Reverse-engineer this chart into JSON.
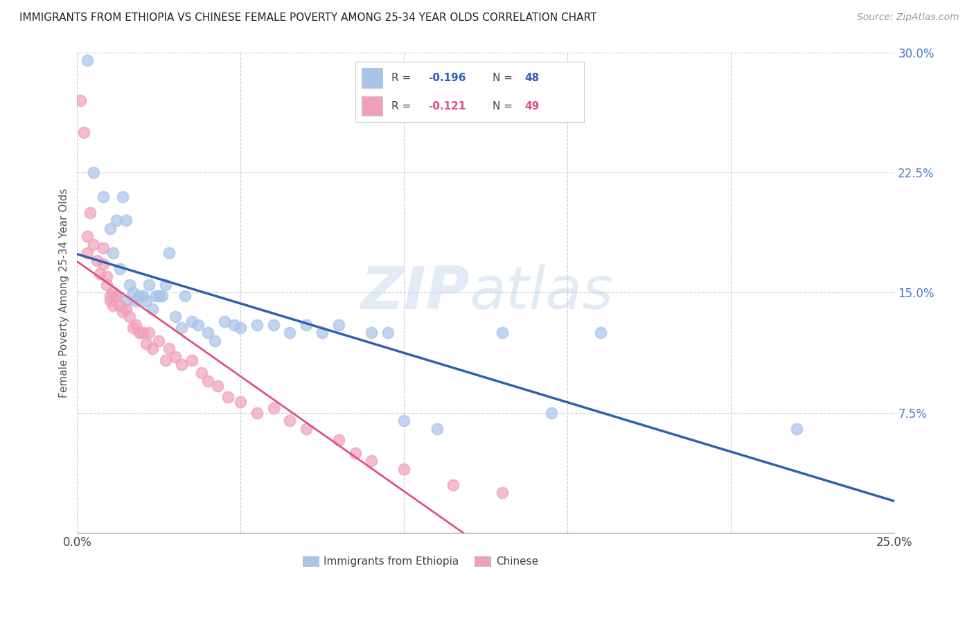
{
  "title": "IMMIGRANTS FROM ETHIOPIA VS CHINESE FEMALE POVERTY AMONG 25-34 YEAR OLDS CORRELATION CHART",
  "source": "Source: ZipAtlas.com",
  "ylabel": "Female Poverty Among 25-34 Year Olds",
  "xlim": [
    0.0,
    0.25
  ],
  "ylim": [
    0.0,
    0.3
  ],
  "x_ticks": [
    0.0,
    0.05,
    0.1,
    0.15,
    0.2,
    0.25
  ],
  "x_tick_labels": [
    "0.0%",
    "",
    "",
    "",
    "",
    "25.0%"
  ],
  "y_ticks_right": [
    0.075,
    0.15,
    0.225,
    0.3
  ],
  "y_tick_labels_right": [
    "7.5%",
    "15.0%",
    "22.5%",
    "30.0%"
  ],
  "color_blue": "#a8c4e8",
  "color_pink": "#f0a0b8",
  "color_blue_line": "#3060b0",
  "color_pink_line": "#e05080",
  "watermark_zip": "ZIP",
  "watermark_atlas": "atlas",
  "ethiopia_x": [
    0.003,
    0.005,
    0.008,
    0.01,
    0.011,
    0.012,
    0.012,
    0.013,
    0.014,
    0.015,
    0.015,
    0.016,
    0.017,
    0.018,
    0.019,
    0.02,
    0.021,
    0.022,
    0.023,
    0.024,
    0.025,
    0.026,
    0.027,
    0.028,
    0.03,
    0.032,
    0.033,
    0.035,
    0.037,
    0.04,
    0.042,
    0.045,
    0.048,
    0.05,
    0.055,
    0.06,
    0.065,
    0.07,
    0.075,
    0.08,
    0.09,
    0.095,
    0.1,
    0.11,
    0.13,
    0.145,
    0.16,
    0.22
  ],
  "ethiopia_y": [
    0.295,
    0.225,
    0.21,
    0.19,
    0.175,
    0.195,
    0.148,
    0.165,
    0.21,
    0.195,
    0.145,
    0.155,
    0.15,
    0.145,
    0.148,
    0.148,
    0.145,
    0.155,
    0.14,
    0.148,
    0.148,
    0.148,
    0.155,
    0.175,
    0.135,
    0.128,
    0.148,
    0.132,
    0.13,
    0.125,
    0.12,
    0.132,
    0.13,
    0.128,
    0.13,
    0.13,
    0.125,
    0.13,
    0.125,
    0.13,
    0.125,
    0.125,
    0.07,
    0.065,
    0.125,
    0.075,
    0.125,
    0.065
  ],
  "chinese_x": [
    0.001,
    0.002,
    0.003,
    0.003,
    0.004,
    0.005,
    0.006,
    0.007,
    0.008,
    0.008,
    0.009,
    0.009,
    0.01,
    0.01,
    0.011,
    0.011,
    0.012,
    0.013,
    0.014,
    0.015,
    0.016,
    0.017,
    0.018,
    0.019,
    0.02,
    0.021,
    0.022,
    0.023,
    0.025,
    0.027,
    0.028,
    0.03,
    0.032,
    0.035,
    0.038,
    0.04,
    0.043,
    0.046,
    0.05,
    0.055,
    0.06,
    0.065,
    0.07,
    0.08,
    0.085,
    0.09,
    0.1,
    0.115,
    0.13
  ],
  "chinese_y": [
    0.27,
    0.25,
    0.185,
    0.175,
    0.2,
    0.18,
    0.17,
    0.162,
    0.178,
    0.168,
    0.16,
    0.155,
    0.145,
    0.148,
    0.15,
    0.142,
    0.148,
    0.142,
    0.138,
    0.14,
    0.135,
    0.128,
    0.13,
    0.125,
    0.125,
    0.118,
    0.125,
    0.115,
    0.12,
    0.108,
    0.115,
    0.11,
    0.105,
    0.108,
    0.1,
    0.095,
    0.092,
    0.085,
    0.082,
    0.075,
    0.078,
    0.07,
    0.065,
    0.058,
    0.05,
    0.045,
    0.04,
    0.03,
    0.025
  ]
}
